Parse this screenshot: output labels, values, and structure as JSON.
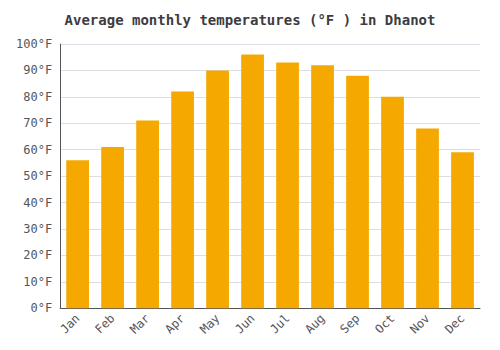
{
  "chart_data": {
    "type": "bar",
    "title": "Average monthly temperatures (°F ) in Dhanot",
    "categories": [
      "Jan",
      "Feb",
      "Mar",
      "Apr",
      "May",
      "Jun",
      "Jul",
      "Aug",
      "Sep",
      "Oct",
      "Nov",
      "Dec"
    ],
    "values": [
      56,
      61,
      71,
      82,
      90,
      96,
      93,
      92,
      88,
      80,
      68,
      59
    ],
    "color": "#F5A800",
    "ylim": [
      0,
      100
    ],
    "yticks": [
      {
        "value": 0,
        "label": "0°F"
      },
      {
        "value": 10,
        "label": "10°F"
      },
      {
        "value": 20,
        "label": "20°F"
      },
      {
        "value": 30,
        "label": "30°F"
      },
      {
        "value": 40,
        "label": "40°F"
      },
      {
        "value": 50,
        "label": "50°F"
      },
      {
        "value": 60,
        "label": "60°F"
      },
      {
        "value": 70,
        "label": "70°F"
      },
      {
        "value": 80,
        "label": "80°F"
      },
      {
        "value": 90,
        "label": "90°F"
      },
      {
        "value": 100,
        "label": "100°F"
      }
    ],
    "grid": true
  }
}
